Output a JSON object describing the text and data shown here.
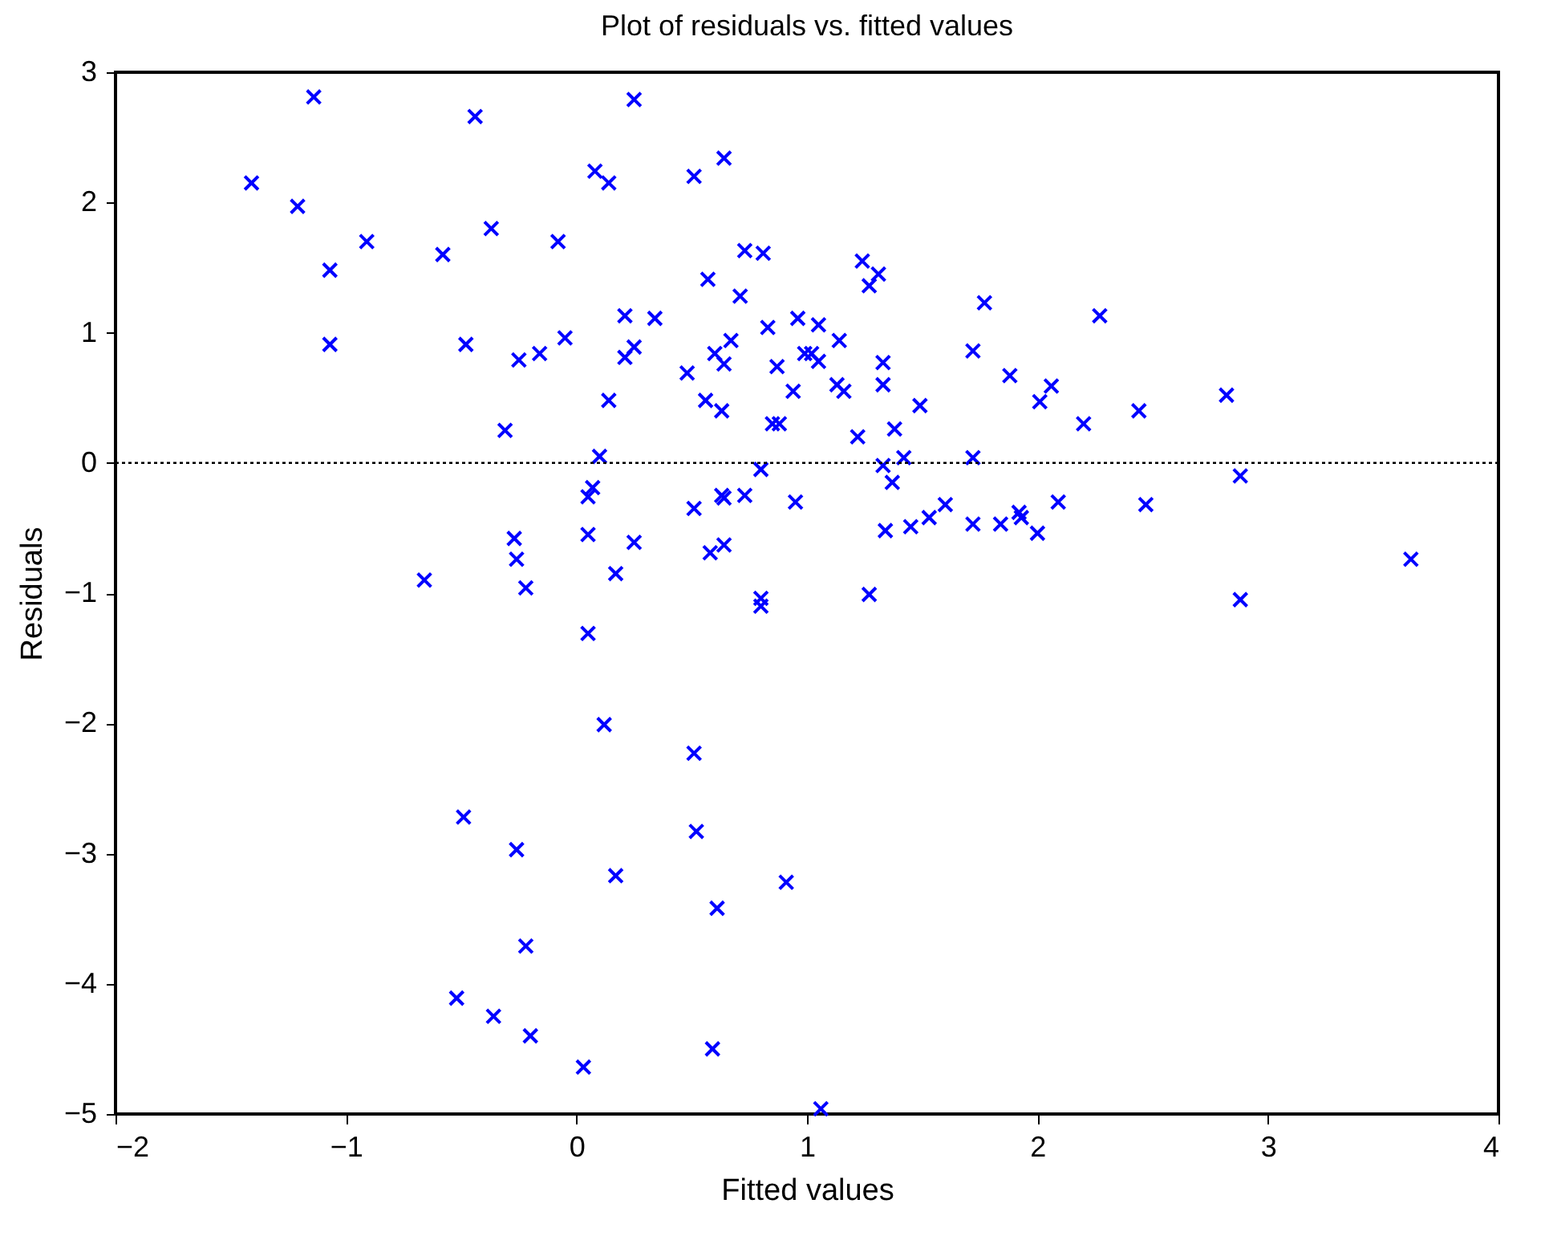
{
  "chart_data": {
    "type": "scatter",
    "title": "Plot of residuals vs. fitted values",
    "xlabel": "Fitted values",
    "ylabel": "Residuals",
    "marker": "cross",
    "grid": false,
    "xlim": [
      -2,
      4
    ],
    "xticks": [
      -2,
      -1,
      0,
      1,
      2,
      3,
      4
    ],
    "ylim": [
      -5,
      3
    ],
    "yticks": [
      -5,
      -4,
      -3,
      -2,
      -1,
      0,
      1,
      2,
      3
    ],
    "ref_lines": [
      {
        "axis": "y",
        "value": 0,
        "color": "#000000",
        "line_style": "dotted"
      }
    ],
    "series": [
      {
        "color": "#0000ff",
        "x": [
          -1.14,
          -0.44,
          -1.41,
          -1.21,
          -0.91,
          -1.07,
          -0.58,
          -0.37,
          -0.08,
          -1.07,
          -0.48,
          -0.25,
          -0.16,
          -0.05,
          -0.31,
          -0.27,
          -0.26,
          -0.66,
          -0.22,
          -0.26,
          -0.22,
          -0.2,
          -0.49,
          -0.52,
          -0.36,
          0.03,
          0.05,
          0.25,
          0.08,
          0.14,
          0.51,
          0.64,
          0.73,
          0.81,
          0.57,
          0.71,
          1.24,
          1.31,
          1.27,
          1.77,
          0.21,
          0.34,
          0.83,
          0.96,
          1.05,
          1.14,
          0.21,
          0.25,
          0.6,
          0.67,
          0.64,
          0.48,
          0.87,
          0.99,
          1.02,
          1.05,
          1.33,
          1.72,
          1.88,
          1.13,
          1.16,
          1.33,
          0.94,
          0.56,
          0.63,
          1.49,
          0.14,
          0.85,
          0.88,
          1.22,
          1.38,
          0.1,
          0.8,
          1.33,
          1.42,
          1.72,
          1.37,
          0.07,
          0.05,
          0.51,
          0.63,
          0.64,
          0.73,
          0.95,
          0.05,
          0.25,
          0.58,
          0.64,
          0.17,
          1.34,
          1.45,
          1.53,
          1.6,
          1.72,
          1.84,
          1.92,
          1.93,
          2.01,
          2.06,
          2.27,
          2.2,
          2.44,
          2.82,
          2.88,
          2.09,
          2.47,
          2.0,
          3.62,
          2.88,
          0.17,
          0.51,
          0.52,
          0.12,
          0.61,
          0.91,
          0.59,
          1.06,
          0.8,
          0.8,
          1.27
        ],
        "values": [
          2.81,
          2.66,
          2.15,
          1.97,
          1.7,
          1.48,
          1.6,
          1.8,
          1.7,
          0.91,
          0.91,
          0.79,
          0.84,
          0.96,
          0.25,
          -0.58,
          -0.74,
          -0.9,
          -0.96,
          -2.97,
          -3.71,
          -4.4,
          -2.72,
          -4.11,
          -4.25,
          -4.64,
          -1.31,
          2.79,
          2.24,
          2.15,
          2.2,
          2.34,
          1.63,
          1.61,
          1.41,
          1.28,
          1.55,
          1.45,
          1.36,
          1.23,
          1.13,
          1.11,
          1.04,
          1.11,
          1.06,
          0.94,
          0.81,
          0.89,
          0.84,
          0.94,
          0.76,
          0.69,
          0.74,
          0.84,
          0.84,
          0.78,
          0.77,
          0.86,
          0.67,
          0.6,
          0.55,
          0.6,
          0.55,
          0.48,
          0.4,
          0.44,
          0.48,
          0.3,
          0.3,
          0.2,
          0.26,
          0.05,
          -0.05,
          -0.02,
          0.04,
          0.04,
          -0.15,
          -0.19,
          -0.26,
          -0.35,
          -0.25,
          -0.27,
          -0.25,
          -0.3,
          -0.55,
          -0.61,
          -0.69,
          -0.63,
          -0.85,
          -0.52,
          -0.49,
          -0.42,
          -0.32,
          -0.47,
          -0.47,
          -0.38,
          -0.42,
          0.47,
          0.59,
          1.13,
          0.3,
          0.4,
          0.52,
          -0.1,
          -0.3,
          -0.32,
          -0.54,
          -0.74,
          -1.05,
          -3.17,
          -2.23,
          -2.83,
          -2.01,
          -3.42,
          -3.22,
          -4.5,
          -4.96,
          -1.04,
          -1.1,
          -1.01
        ]
      }
    ]
  }
}
